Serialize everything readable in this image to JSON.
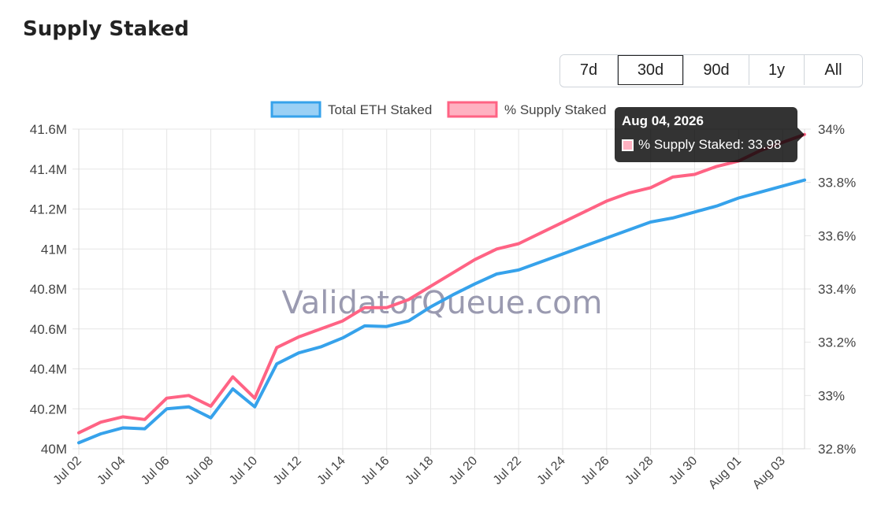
{
  "page": {
    "title": "Supply Staked",
    "watermark": "ValidatorQueue.com"
  },
  "range_buttons": [
    {
      "label": "7d",
      "active": false
    },
    {
      "label": "30d",
      "active": true
    },
    {
      "label": "90d",
      "active": false
    },
    {
      "label": "1y",
      "active": false
    },
    {
      "label": "All",
      "active": false
    }
  ],
  "tooltip": {
    "title": "Aug 04, 2026",
    "body": "% Supply Staked: 33.98"
  },
  "chart_data": {
    "type": "line",
    "x": [
      "2026-07-02",
      "2026-07-03",
      "2026-07-04",
      "2026-07-05",
      "2026-07-06",
      "2026-07-07",
      "2026-07-08",
      "2026-07-09",
      "2026-07-10",
      "2026-07-11",
      "2026-07-12",
      "2026-07-13",
      "2026-07-14",
      "2026-07-15",
      "2026-07-16",
      "2026-07-17",
      "2026-07-18",
      "2026-07-19",
      "2026-07-20",
      "2026-07-21",
      "2026-07-22",
      "2026-07-23",
      "2026-07-24",
      "2026-07-25",
      "2026-07-26",
      "2026-07-27",
      "2026-07-28",
      "2026-07-29",
      "2026-07-30",
      "2026-07-31",
      "2026-08-01",
      "2026-08-02",
      "2026-08-03",
      "2026-08-04"
    ],
    "x_tick_labels": [
      "Jul 02",
      "Jul 04",
      "Jul 06",
      "Jul 08",
      "Jul 10",
      "Jul 12",
      "Jul 14",
      "Jul 16",
      "Jul 18",
      "Jul 20",
      "Jul 22",
      "Jul 24",
      "Jul 26",
      "Jul 28",
      "Jul 30",
      "Aug 01",
      "Aug 03"
    ],
    "y_left": {
      "min": 40000000,
      "max": 41600000,
      "tick_labels": [
        "40M",
        "40.2M",
        "40.4M",
        "40.6M",
        "40.8M",
        "41M",
        "41.2M",
        "41.4M",
        "41.6M"
      ],
      "tick_values": [
        40000000,
        40200000,
        40400000,
        40600000,
        40800000,
        41000000,
        41200000,
        41400000,
        41600000
      ]
    },
    "y_right": {
      "min": 32.8,
      "max": 34.0,
      "tick_labels": [
        "32.8%",
        "33%",
        "33.2%",
        "33.4%",
        "33.6%",
        "33.8%",
        "34%"
      ],
      "tick_values": [
        32.8,
        33.0,
        33.2,
        33.4,
        33.6,
        33.8,
        34.0
      ]
    },
    "grid": true,
    "legend_position": "top",
    "series": [
      {
        "name": "Total ETH Staked",
        "axis": "left",
        "color": "#36a2eb",
        "fill": "#9ad0f5",
        "values": [
          40030000,
          40075000,
          40105000,
          40100000,
          40200000,
          40210000,
          40155000,
          40300000,
          40210000,
          40425000,
          40480000,
          40510000,
          40555000,
          40615000,
          40612000,
          40640000,
          40710000,
          40770000,
          40825000,
          40875000,
          40895000,
          40935000,
          40975000,
          41015000,
          41055000,
          41095000,
          41135000,
          41155000,
          41185000,
          41215000,
          41255000,
          41285000,
          41315000,
          41345000
        ]
      },
      {
        "name": "% Supply Staked",
        "axis": "right",
        "color": "#ff6384",
        "fill": "#ffb1c1",
        "values": [
          32.86,
          32.9,
          32.92,
          32.91,
          32.99,
          33.0,
          32.96,
          33.07,
          32.99,
          33.18,
          33.22,
          33.25,
          33.28,
          33.33,
          33.33,
          33.36,
          33.41,
          33.46,
          33.51,
          33.55,
          33.57,
          33.61,
          33.65,
          33.69,
          33.73,
          33.76,
          33.78,
          33.82,
          33.83,
          33.86,
          33.88,
          33.92,
          33.95,
          33.98
        ]
      }
    ]
  }
}
